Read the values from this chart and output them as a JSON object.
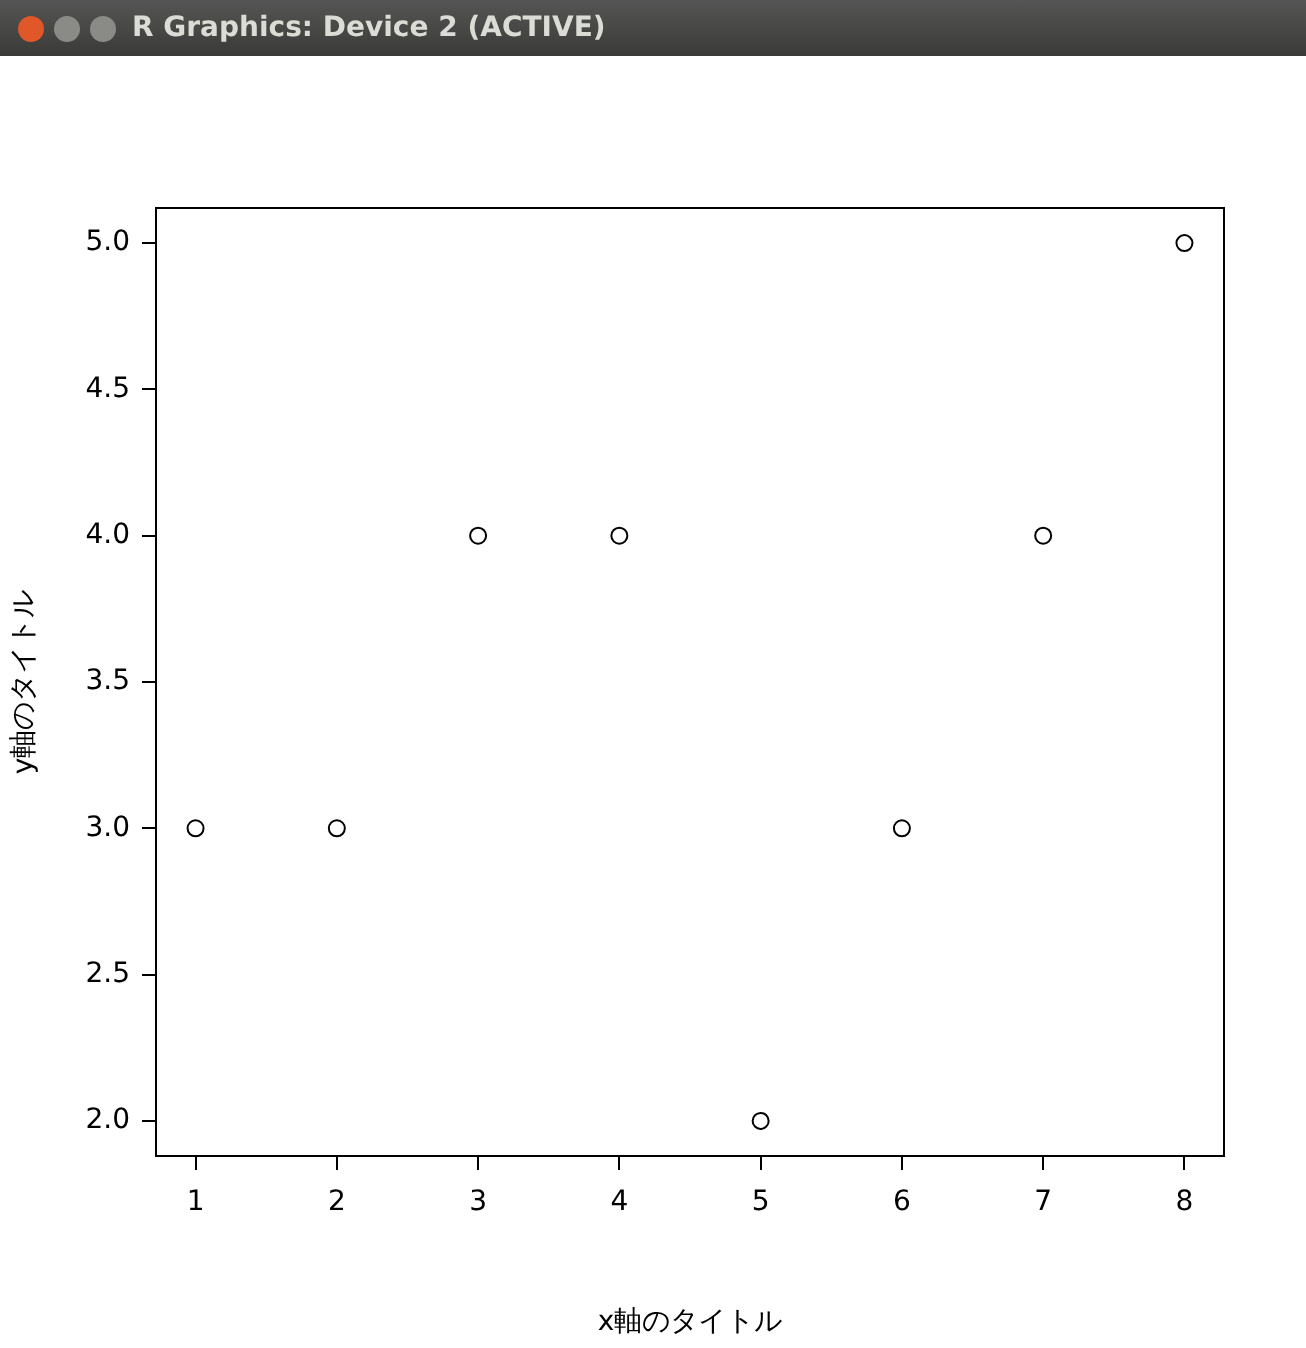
{
  "chart_data": {
    "type": "scatter",
    "xlabel": "x軸のタイトル",
    "ylabel": "y軸のタイトル",
    "annotations": [
      "R Graphics: Device 2 (ACTIVE)"
    ],
    "x": [
      1,
      2,
      3,
      4,
      5,
      6,
      7,
      8
    ],
    "values": [
      3,
      3,
      4,
      4,
      2,
      3,
      4,
      5
    ],
    "color": "#000000",
    "marker": "circle",
    "grid": false,
    "legend": false,
    "xlim": [
      0.72,
      8.28
    ],
    "ylim": [
      1.88,
      5.12
    ],
    "xticks": [
      1,
      2,
      3,
      4,
      5,
      6,
      7,
      8
    ],
    "yticks": [
      {
        "value": 2,
        "label": "2.0"
      },
      {
        "value": 2.5,
        "label": "2.5"
      },
      {
        "value": 3,
        "label": "3.0"
      },
      {
        "value": 3.5,
        "label": "3.5"
      },
      {
        "value": 4,
        "label": "4.0"
      },
      {
        "value": 4.5,
        "label": "4.5"
      },
      {
        "value": 5,
        "label": "5.0"
      }
    ]
  }
}
